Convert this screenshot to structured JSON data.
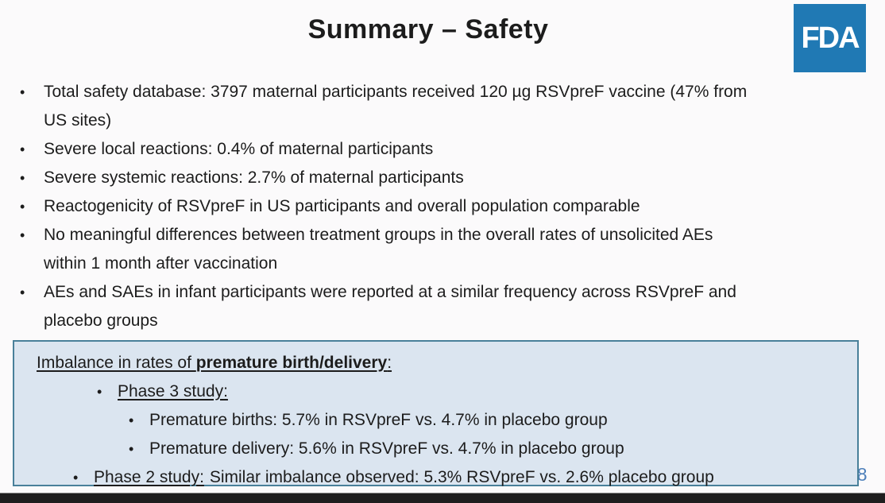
{
  "slide": {
    "title": "Summary – Safety",
    "page_number": "38"
  },
  "logo": {
    "text": "FDA"
  },
  "glyphs": {
    "bullet": "•"
  },
  "bullets": [
    "Total safety database: 3797 maternal participants received 120 µg RSVpreF vaccine (47% from\nUS sites)",
    "Severe local reactions: 0.4% of maternal participants",
    "Severe systemic reactions: 2.7% of maternal participants",
    "Reactogenicity of RSVpreF in US participants and overall population comparable",
    "No meaningful differences between treatment groups in the overall rates of unsolicited AEs\nwithin 1 month after vaccination",
    "AEs and SAEs in infant participants were reported at a similar frequency across RSVpreF and\nplacebo groups"
  ],
  "box": {
    "heading_prefix": "Imbalance in rates of ",
    "heading_emphasis": "premature birth/delivery",
    "heading_suffix": ":",
    "phase3_label": "Phase 3 study:",
    "phase3_items": [
      "Premature births: 5.7% in RSVpreF vs. 4.7% in placebo group",
      "Premature delivery: 5.6% in RSVpreF vs. 4.7% in placebo group"
    ],
    "phase2_label": "Phase 2 study:",
    "phase2_text": "Similar imbalance observed: 5.3% RSVpreF vs. 2.6% placebo group"
  },
  "colors": {
    "fda_logo_blue": "#2079b4",
    "box_background": "#dbe5f0",
    "box_border": "#49809a",
    "page_number_blue": "#4d7fba"
  }
}
